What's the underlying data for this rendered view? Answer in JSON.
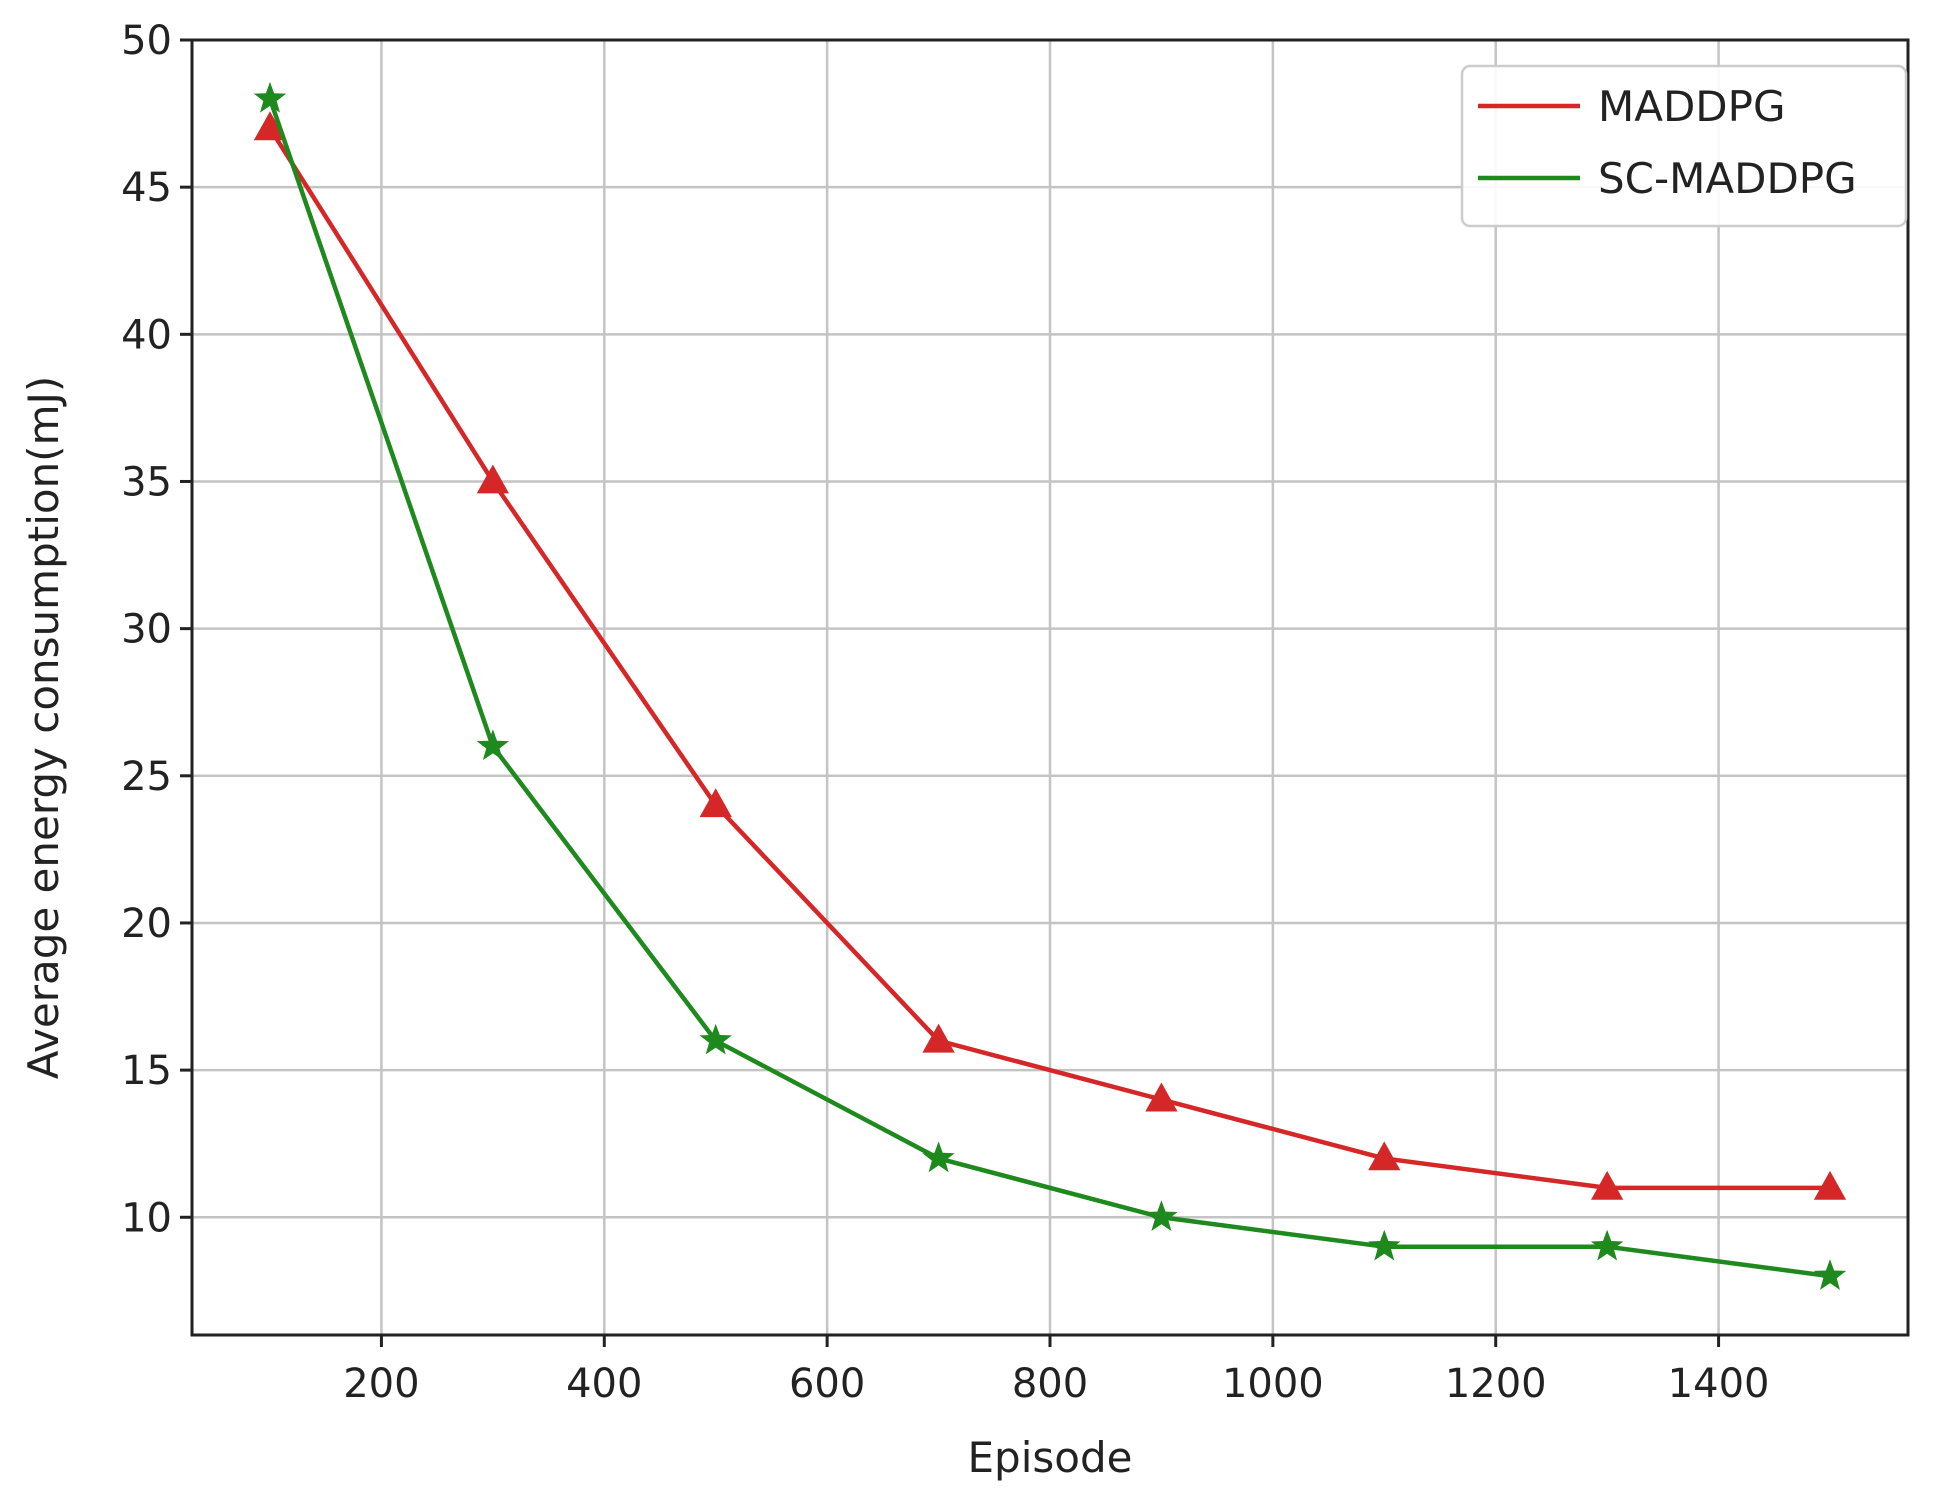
{
  "chart_data": {
    "type": "line",
    "title": "",
    "xlabel": "Episode",
    "ylabel": "Average energy consumption(mJ)",
    "xlim": [
      30,
      1570
    ],
    "ylim": [
      6,
      50
    ],
    "xticks": [
      200,
      400,
      600,
      800,
      1000,
      1200,
      1400
    ],
    "yticks": [
      10,
      15,
      20,
      25,
      30,
      35,
      40,
      45,
      50
    ],
    "grid": true,
    "legend": "top-right",
    "series": [
      {
        "name": "MADDPG",
        "color": "#d62728",
        "marker": "triangle",
        "x": [
          100,
          300,
          500,
          700,
          900,
          1100,
          1300,
          1500
        ],
        "y": [
          47,
          35,
          24,
          16,
          14,
          12,
          11,
          11
        ]
      },
      {
        "name": "SC-MADDPG",
        "color": "#1e8a1e",
        "marker": "star",
        "x": [
          100,
          300,
          500,
          700,
          900,
          1100,
          1300,
          1500
        ],
        "y": [
          48,
          26,
          16,
          12,
          10,
          9,
          9,
          8
        ]
      }
    ]
  }
}
